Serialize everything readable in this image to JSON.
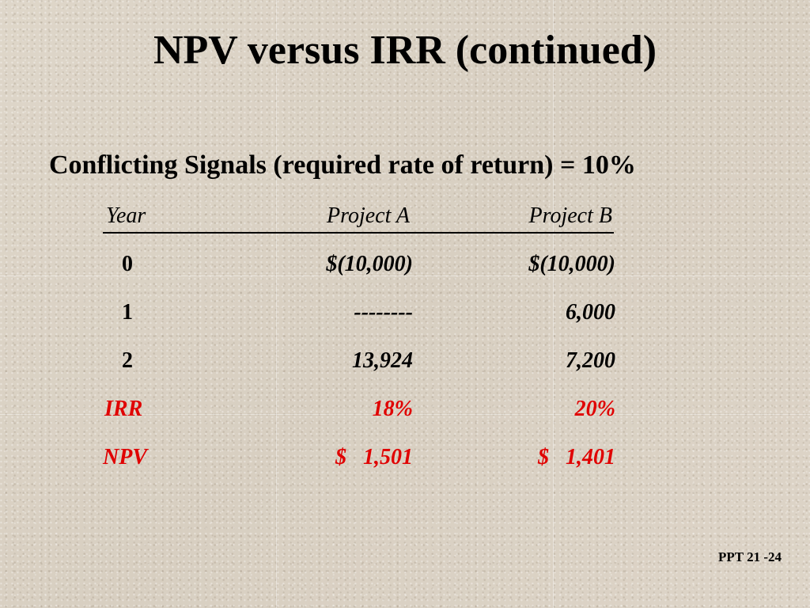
{
  "slide": {
    "title": "NPV versus IRR (continued)",
    "subtitle": "Conflicting Signals (required rate of return) = 10%",
    "footer": "PPT 21 -24"
  },
  "table": {
    "headers": {
      "year": "Year",
      "project_a": "Project A",
      "project_b": "Project B"
    },
    "rows": [
      {
        "year": "0",
        "project_a": "$(10,000)",
        "project_b": "$(10,000)"
      },
      {
        "year": "1",
        "project_a": "--------",
        "project_b": "6,000"
      },
      {
        "year": "2",
        "project_a": "13,924",
        "project_b": "7,200"
      }
    ],
    "irr": {
      "label": "IRR",
      "project_a": "18%",
      "project_b": "20%"
    },
    "npv": {
      "label": "NPV",
      "project_a": "$   1,501",
      "project_b": "$   1,401"
    }
  },
  "colors": {
    "highlight": "#e00000",
    "background": "#dcd3c5"
  }
}
